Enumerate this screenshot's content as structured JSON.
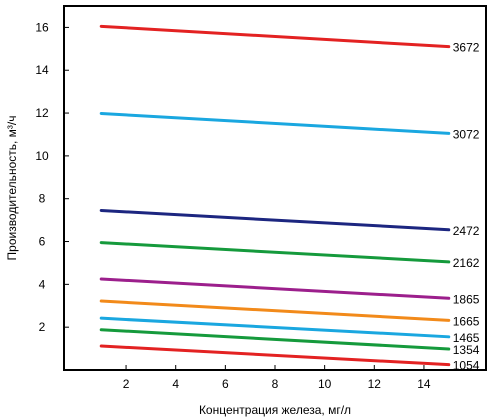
{
  "chart_data": {
    "type": "line",
    "xlabel": "Концентрация железа, мг/л",
    "ylabel": "Производительность, м³/ч",
    "xlim": [
      -0.5,
      16.5
    ],
    "ylim": [
      0,
      17
    ],
    "x_ticks": [
      2,
      4,
      6,
      8,
      10,
      12,
      14
    ],
    "y_ticks": [
      2,
      4,
      6,
      8,
      10,
      12,
      14,
      16
    ],
    "grid": false,
    "legend": "none",
    "series": [
      {
        "label": "3672",
        "color": "#e32222",
        "x": [
          1,
          15
        ],
        "y": [
          16.05,
          15.1
        ]
      },
      {
        "label": "3072",
        "color": "#1aa7e0",
        "x": [
          1,
          15
        ],
        "y": [
          11.98,
          11.05
        ]
      },
      {
        "label": "2472",
        "color": "#1c2680",
        "x": [
          1,
          15
        ],
        "y": [
          7.45,
          6.55
        ]
      },
      {
        "label": "2162",
        "color": "#159a3c",
        "x": [
          1,
          15
        ],
        "y": [
          5.95,
          5.05
        ]
      },
      {
        "label": "1865",
        "color": "#9c1f8c",
        "x": [
          1,
          15
        ],
        "y": [
          4.25,
          3.35
        ]
      },
      {
        "label": "1665",
        "color": "#f28a1a",
        "x": [
          1,
          15
        ],
        "y": [
          3.22,
          2.32
        ]
      },
      {
        "label": "1465",
        "color": "#1aa7e0",
        "x": [
          1,
          15
        ],
        "y": [
          2.42,
          1.55
        ]
      },
      {
        "label": "1354",
        "color": "#159a3c",
        "x": [
          1,
          15
        ],
        "y": [
          1.88,
          0.98
        ]
      },
      {
        "label": "1054",
        "color": "#e32222",
        "x": [
          1,
          15
        ],
        "y": [
          1.12,
          0.25
        ]
      }
    ]
  }
}
